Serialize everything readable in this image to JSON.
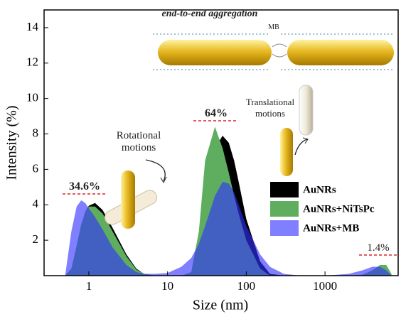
{
  "chart_data": {
    "type": "area",
    "xlabel": "Size (nm)",
    "ylabel": "Intensity (%)",
    "x": [
      0.5,
      0.6,
      0.7,
      0.8,
      0.9,
      1,
      1.2,
      1.5,
      2,
      3,
      4,
      5,
      7,
      10,
      15,
      20,
      25,
      30,
      40,
      50,
      60,
      70,
      80,
      100,
      150,
      200,
      300,
      500,
      1000,
      2000,
      3000,
      4000,
      5000,
      6000,
      7000
    ],
    "series": [
      {
        "name": "AuNRs",
        "color": "#000000",
        "opacity": 1,
        "values": [
          0,
          0.3,
          1.5,
          2.8,
          3.6,
          3.95,
          4.1,
          3.7,
          2.7,
          1.2,
          0.4,
          0.1,
          0,
          0,
          0,
          0.1,
          1.5,
          4,
          7.2,
          7.9,
          7.5,
          6.5,
          5.3,
          3.2,
          0.8,
          0.1,
          0,
          0,
          0,
          0,
          0,
          0.2,
          0.45,
          0.3,
          0
        ]
      },
      {
        "name": "AuNRs+NiTsPc",
        "color": "#5fae5f",
        "opacity": 1,
        "values": [
          0,
          0.4,
          1.7,
          2.9,
          3.6,
          3.9,
          3.9,
          3.5,
          2.5,
          1.1,
          0.35,
          0.1,
          0,
          0,
          0,
          0.2,
          2.5,
          6.5,
          8.4,
          7.2,
          5.8,
          4.5,
          3.5,
          2,
          0.4,
          0,
          0,
          0,
          0,
          0,
          0.05,
          0.3,
          0.6,
          0.6,
          0.1
        ]
      },
      {
        "name": "AuNRs+MB",
        "color": "#3030ff",
        "opacity": 0.62,
        "values": [
          0,
          2.5,
          3.9,
          4.25,
          4.1,
          3.8,
          3.3,
          2.6,
          1.6,
          0.6,
          0.2,
          0.1,
          0.1,
          0.15,
          0.5,
          1,
          1.8,
          2.8,
          4.5,
          5.3,
          5.2,
          4.7,
          4,
          2.8,
          1.2,
          0.5,
          0.1,
          0,
          0,
          0.1,
          0.3,
          0.5,
          0.5,
          0.3,
          0
        ]
      }
    ],
    "xlim": [
      0.27,
      8500
    ],
    "xticks": [
      1,
      10,
      100,
      1000
    ],
    "xscale": "log",
    "ylim": [
      0,
      15
    ],
    "yticks": [
      2,
      4,
      6,
      8,
      10,
      12,
      14
    ],
    "legend": "right",
    "annotations": [
      "end-to-end aggregation",
      "MB",
      "Rotational motions",
      "Translational motions",
      "34.6%",
      "64%",
      "1.4%"
    ]
  }
}
